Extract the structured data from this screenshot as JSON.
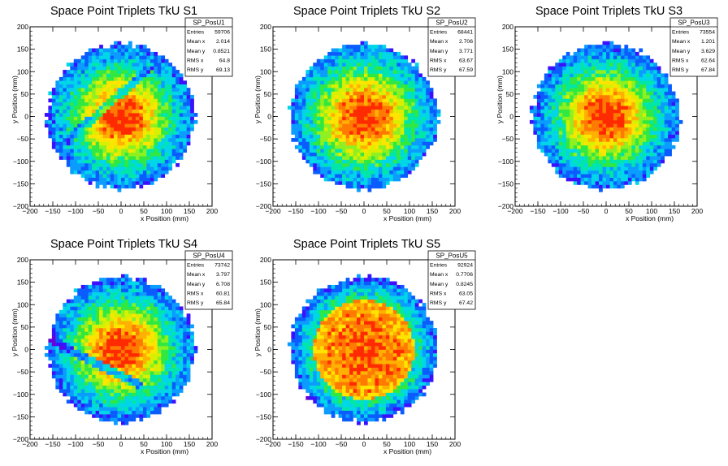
{
  "colors": {
    "frame": "#000000",
    "background": "#ffffff",
    "palette": "rainbow"
  },
  "chart_data": [
    {
      "type": "heatmap",
      "title": "Space Point Triplets TkU S1",
      "xlabel": "x Position (mm)",
      "ylabel": "y Position (mm)",
      "xlim": [
        -200,
        200
      ],
      "ylim": [
        -200,
        200
      ],
      "xticks": [
        "−200",
        "−150",
        "−100",
        "−50",
        "0",
        "50",
        "100",
        "150",
        "200"
      ],
      "yticks": [
        "200",
        "150",
        "100",
        "50",
        "0",
        "−50",
        "−100",
        "−150",
        "−200"
      ],
      "stats": {
        "name": "SP_PosU1",
        "rows": [
          {
            "label": "Entries",
            "value": "59706"
          },
          {
            "label": "Mean x",
            "value": "2.014"
          },
          {
            "label": "Mean y",
            "value": "0.8521"
          },
          {
            "label": "RMS x",
            "value": "64.8"
          },
          {
            "label": "RMS y",
            "value": "69.13"
          }
        ]
      },
      "shape": {
        "radius": 162,
        "core_sigma": 60,
        "gap_line": [
          [
            -120,
            -55
          ],
          [
            60,
            105
          ]
        ],
        "gap_strength": 0.45
      }
    },
    {
      "type": "heatmap",
      "title": "Space Point Triplets TkU S2",
      "xlabel": "x Position (mm)",
      "ylabel": "y Position (mm)",
      "xlim": [
        -200,
        200
      ],
      "ylim": [
        -200,
        200
      ],
      "xticks": [
        "−200",
        "−150",
        "−100",
        "−50",
        "0",
        "50",
        "100",
        "150",
        "200"
      ],
      "yticks": [
        "200",
        "150",
        "100",
        "50",
        "0",
        "−50",
        "−100",
        "−150",
        "−200"
      ],
      "stats": {
        "name": "SP_PosU2",
        "rows": [
          {
            "label": "Entries",
            "value": "68441"
          },
          {
            "label": "Mean x",
            "value": "2.706"
          },
          {
            "label": "Mean y",
            "value": "3.771"
          },
          {
            "label": "RMS x",
            "value": "63.67"
          },
          {
            "label": "RMS y",
            "value": "67.59"
          }
        ]
      },
      "shape": {
        "radius": 162,
        "core_sigma": 62,
        "gap_line": null,
        "gap_strength": 0
      }
    },
    {
      "type": "heatmap",
      "title": "Space Point Triplets TkU S3",
      "xlabel": "x Position (mm)",
      "ylabel": "y Position (mm)",
      "xlim": [
        -200,
        200
      ],
      "ylim": [
        -200,
        200
      ],
      "xticks": [
        "−200",
        "−150",
        "−100",
        "−50",
        "0",
        "50",
        "100",
        "150",
        "200"
      ],
      "yticks": [
        "200",
        "150",
        "100",
        "50",
        "0",
        "−50",
        "−100",
        "−150",
        "−200"
      ],
      "stats": {
        "name": "SP_PosU3",
        "rows": [
          {
            "label": "Entries",
            "value": "73554"
          },
          {
            "label": "Mean x",
            "value": "1.201"
          },
          {
            "label": "Mean y",
            "value": "3.629"
          },
          {
            "label": "RMS x",
            "value": "62.64"
          },
          {
            "label": "RMS y",
            "value": "67.84"
          }
        ]
      },
      "shape": {
        "radius": 162,
        "core_sigma": 60,
        "gap_line": null,
        "gap_strength": 0
      }
    },
    {
      "type": "heatmap",
      "title": "Space Point Triplets TkU S4",
      "xlabel": "x Position (mm)",
      "ylabel": "y Position (mm)",
      "xlim": [
        -200,
        200
      ],
      "ylim": [
        -200,
        200
      ],
      "xticks": [
        "−200",
        "−150",
        "−100",
        "−50",
        "0",
        "50",
        "100",
        "150",
        "200"
      ],
      "yticks": [
        "200",
        "150",
        "100",
        "50",
        "0",
        "−50",
        "−100",
        "−150",
        "−200"
      ],
      "stats": {
        "name": "SP_PosU4",
        "rows": [
          {
            "label": "Entries",
            "value": "73742"
          },
          {
            "label": "Mean x",
            "value": "3.797"
          },
          {
            "label": "Mean y",
            "value": "6.708"
          },
          {
            "label": "RMS x",
            "value": "60.81"
          },
          {
            "label": "RMS y",
            "value": "65.84"
          }
        ]
      },
      "shape": {
        "radius": 162,
        "core_sigma": 60,
        "gap_line": [
          [
            -150,
            20
          ],
          [
            40,
            -80
          ]
        ],
        "gap_strength": 0.55
      }
    },
    {
      "type": "heatmap",
      "title": "Space Point Triplets TkU S5",
      "xlabel": "x Position (mm)",
      "ylabel": "y Position (mm)",
      "xlim": [
        -200,
        200
      ],
      "ylim": [
        -200,
        200
      ],
      "xticks": [
        "−200",
        "−150",
        "−100",
        "−50",
        "0",
        "50",
        "100",
        "150",
        "200"
      ],
      "yticks": [
        "200",
        "150",
        "100",
        "50",
        "0",
        "−50",
        "−100",
        "−150",
        "−200"
      ],
      "stats": {
        "name": "SP_PosU5",
        "rows": [
          {
            "label": "Entries",
            "value": "92924"
          },
          {
            "label": "Mean x",
            "value": "0.7706"
          },
          {
            "label": "Mean y",
            "value": "0.8245"
          },
          {
            "label": "RMS x",
            "value": "63.05"
          },
          {
            "label": "RMS y",
            "value": "67.42"
          }
        ]
      },
      "shape": {
        "radius": 162,
        "core_sigma": 70,
        "gap_line": null,
        "gap_strength": 0
      }
    }
  ]
}
